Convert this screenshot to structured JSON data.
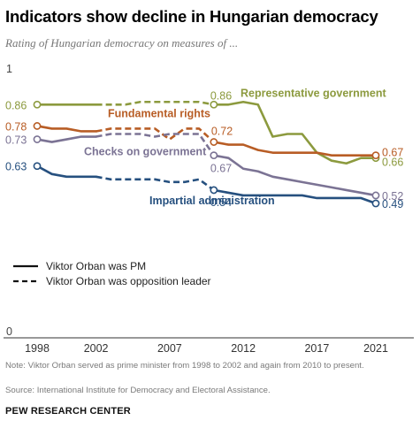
{
  "header": {
    "title": "Indicators show decline in Hungarian democracy",
    "subtitle": "Rating of Hungarian democracy on measures of ..."
  },
  "footer": {
    "note": "Note: Viktor Orban served as prime minister from 1998 to 2002 and again from 2010 to present.",
    "source": "Source: International Institute for Democracy and Electoral Assistance.",
    "brand": "PEW RESEARCH CENTER"
  },
  "chart_data": {
    "type": "line",
    "title": "Indicators show decline in Hungarian democracy",
    "subtitle": "Rating of Hungarian democracy on measures of ...",
    "xlabel": "",
    "ylabel": "",
    "xlim": [
      1998,
      2021
    ],
    "ylim": [
      0,
      1
    ],
    "x_ticks": [
      1998,
      2002,
      2007,
      2012,
      2017,
      2021
    ],
    "y_ticks": [
      0,
      1
    ],
    "grid": false,
    "style_legend": [
      {
        "label": "Viktor Orban was PM",
        "dash": "solid"
      },
      {
        "label": "Viktor Orban was opposition leader",
        "dash": "dashed"
      }
    ],
    "pm_periods": [
      [
        1998,
        2002
      ],
      [
        2010,
        2021
      ]
    ],
    "series": [
      {
        "name": "Representative government",
        "color": "#8c9a3e",
        "points": [
          [
            1998,
            0.86
          ],
          [
            1999,
            0.86
          ],
          [
            2000,
            0.86
          ],
          [
            2001,
            0.86
          ],
          [
            2002,
            0.86
          ],
          [
            2003,
            0.86
          ],
          [
            2004,
            0.86
          ],
          [
            2005,
            0.87
          ],
          [
            2006,
            0.87
          ],
          [
            2007,
            0.87
          ],
          [
            2008,
            0.87
          ],
          [
            2009,
            0.87
          ],
          [
            2010,
            0.86
          ],
          [
            2011,
            0.86
          ],
          [
            2012,
            0.87
          ],
          [
            2013,
            0.86
          ],
          [
            2014,
            0.74
          ],
          [
            2015,
            0.75
          ],
          [
            2016,
            0.75
          ],
          [
            2017,
            0.68
          ],
          [
            2018,
            0.65
          ],
          [
            2019,
            0.64
          ],
          [
            2020,
            0.66
          ],
          [
            2021,
            0.66
          ]
        ],
        "labels": [
          {
            "year": 1998,
            "value": "0.86"
          },
          {
            "year": 2010,
            "value": "0.86"
          },
          {
            "year": 2021,
            "value": "0.66"
          }
        ]
      },
      {
        "name": "Fundamental rights",
        "color": "#b85d25",
        "points": [
          [
            1998,
            0.78
          ],
          [
            1999,
            0.77
          ],
          [
            2000,
            0.77
          ],
          [
            2001,
            0.76
          ],
          [
            2002,
            0.76
          ],
          [
            2003,
            0.77
          ],
          [
            2004,
            0.77
          ],
          [
            2005,
            0.77
          ],
          [
            2006,
            0.77
          ],
          [
            2007,
            0.73
          ],
          [
            2008,
            0.77
          ],
          [
            2009,
            0.77
          ],
          [
            2010,
            0.72
          ],
          [
            2011,
            0.71
          ],
          [
            2012,
            0.71
          ],
          [
            2013,
            0.69
          ],
          [
            2014,
            0.68
          ],
          [
            2015,
            0.68
          ],
          [
            2016,
            0.68
          ],
          [
            2017,
            0.68
          ],
          [
            2018,
            0.67
          ],
          [
            2019,
            0.67
          ],
          [
            2020,
            0.67
          ],
          [
            2021,
            0.67
          ]
        ],
        "labels": [
          {
            "year": 1998,
            "value": "0.78"
          },
          {
            "year": 2010,
            "value": "0.72"
          },
          {
            "year": 2021,
            "value": "0.67"
          }
        ]
      },
      {
        "name": "Checks on government",
        "color": "#7b7394",
        "points": [
          [
            1998,
            0.73
          ],
          [
            1999,
            0.72
          ],
          [
            2000,
            0.73
          ],
          [
            2001,
            0.74
          ],
          [
            2002,
            0.74
          ],
          [
            2003,
            0.75
          ],
          [
            2004,
            0.75
          ],
          [
            2005,
            0.75
          ],
          [
            2006,
            0.74
          ],
          [
            2007,
            0.75
          ],
          [
            2008,
            0.75
          ],
          [
            2009,
            0.75
          ],
          [
            2010,
            0.67
          ],
          [
            2011,
            0.66
          ],
          [
            2012,
            0.62
          ],
          [
            2013,
            0.61
          ],
          [
            2014,
            0.59
          ],
          [
            2015,
            0.58
          ],
          [
            2016,
            0.57
          ],
          [
            2017,
            0.56
          ],
          [
            2018,
            0.55
          ],
          [
            2019,
            0.54
          ],
          [
            2020,
            0.53
          ],
          [
            2021,
            0.52
          ]
        ],
        "labels": [
          {
            "year": 1998,
            "value": "0.73"
          },
          {
            "year": 2010,
            "value": "0.67"
          },
          {
            "year": 2021,
            "value": "0.52"
          }
        ]
      },
      {
        "name": "Impartial administration",
        "color": "#26507f",
        "points": [
          [
            1998,
            0.63
          ],
          [
            1999,
            0.6
          ],
          [
            2000,
            0.59
          ],
          [
            2001,
            0.59
          ],
          [
            2002,
            0.59
          ],
          [
            2003,
            0.58
          ],
          [
            2004,
            0.58
          ],
          [
            2005,
            0.58
          ],
          [
            2006,
            0.58
          ],
          [
            2007,
            0.57
          ],
          [
            2008,
            0.57
          ],
          [
            2009,
            0.58
          ],
          [
            2010,
            0.54
          ],
          [
            2011,
            0.53
          ],
          [
            2012,
            0.52
          ],
          [
            2013,
            0.52
          ],
          [
            2014,
            0.52
          ],
          [
            2015,
            0.52
          ],
          [
            2016,
            0.52
          ],
          [
            2017,
            0.51
          ],
          [
            2018,
            0.51
          ],
          [
            2019,
            0.51
          ],
          [
            2020,
            0.51
          ],
          [
            2021,
            0.49
          ]
        ],
        "labels": [
          {
            "year": 1998,
            "value": "0.63"
          },
          {
            "year": 2010,
            "value": "0.54"
          },
          {
            "year": 2021,
            "value": "0.49"
          }
        ]
      }
    ]
  }
}
